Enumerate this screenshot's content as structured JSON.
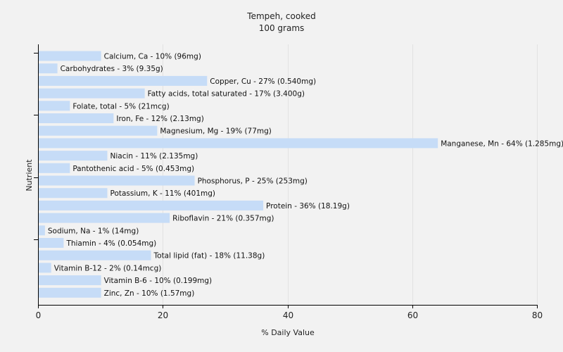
{
  "chart_data": {
    "type": "bar",
    "orientation": "horizontal",
    "title": "Tempeh, cooked",
    "subtitle": "100 grams",
    "xlabel": "% Daily Value",
    "ylabel": "Nutrient",
    "xlim": [
      0,
      80
    ],
    "xticks": [
      0,
      20,
      40,
      60,
      80
    ],
    "grid": true,
    "bar_color": "#c6dcf7",
    "categories": [
      "Calcium, Ca",
      "Carbohydrates",
      "Copper, Cu",
      "Fatty acids, total saturated",
      "Folate, total",
      "Iron, Fe",
      "Magnesium, Mg",
      "Manganese, Mn",
      "Niacin",
      "Pantothenic acid",
      "Phosphorus, P",
      "Potassium, K",
      "Protein",
      "Riboflavin",
      "Sodium, Na",
      "Thiamin",
      "Total lipid (fat)",
      "Vitamin B-12",
      "Vitamin B-6",
      "Zinc, Zn"
    ],
    "values": [
      10,
      3,
      27,
      17,
      5,
      12,
      19,
      64,
      11,
      5,
      25,
      11,
      36,
      21,
      1,
      4,
      18,
      2,
      10,
      10
    ],
    "labels": [
      "Calcium, Ca - 10% (96mg)",
      "Carbohydrates - 3% (9.35g)",
      "Copper, Cu - 27% (0.540mg)",
      "Fatty acids, total saturated - 17% (3.400g)",
      "Folate, total - 5% (21mcg)",
      "Iron, Fe - 12% (2.13mg)",
      "Magnesium, Mg - 19% (77mg)",
      "Manganese, Mn - 64% (1.285mg)",
      "Niacin - 11% (2.135mg)",
      "Pantothenic acid - 5% (0.453mg)",
      "Phosphorus, P - 25% (253mg)",
      "Potassium, K - 11% (401mg)",
      "Protein - 36% (18.19g)",
      "Riboflavin - 21% (0.357mg)",
      "Sodium, Na - 1% (14mg)",
      "Thiamin - 4% (0.054mg)",
      "Total lipid (fat) - 18% (11.38g)",
      "Vitamin B-12 - 2% (0.14mcg)",
      "Vitamin B-6 - 10% (0.199mg)",
      "Zinc, Zn - 10% (1.57mg)"
    ]
  }
}
